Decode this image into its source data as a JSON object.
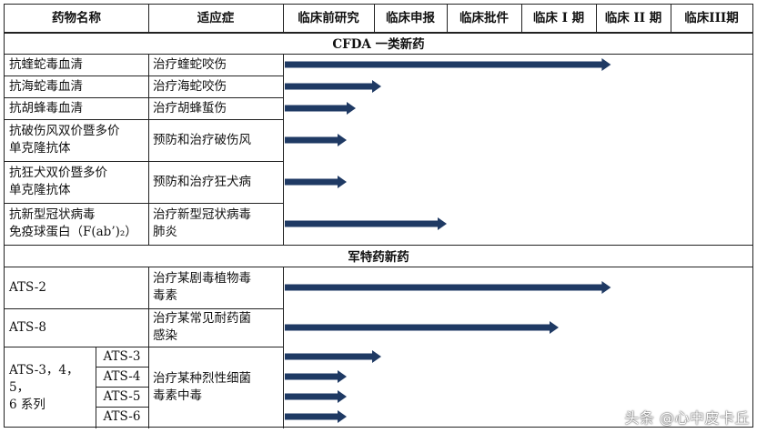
{
  "headers": {
    "drug": "药物名称",
    "indication": "适应症",
    "stages": [
      "临床前研究",
      "临床申报",
      "临床批件",
      "临床 I 期",
      "临床 II 期",
      "临床III期"
    ]
  },
  "sections": {
    "cfda": "CFDA 一类新药",
    "military": "军特药新药"
  },
  "rows": [
    {
      "drug": "抗蝰蛇毒血清",
      "indication": "治疗蝰蛇咬伤",
      "progress_stages": 4.2
    },
    {
      "drug": "抗海蛇毒血清",
      "indication": "治疗海蛇咬伤",
      "progress_stages": 1.1
    },
    {
      "drug": "抗胡蜂毒血清",
      "indication": "治疗胡蜂蜇伤",
      "progress_stages": 0.8
    },
    {
      "drug": "抗破伤风双价暨多价\n单克隆抗体",
      "indication": "预防和治疗破伤风",
      "progress_stages": 0.7
    },
    {
      "drug": "抗狂犬双价暨多价\n单克隆抗体",
      "indication": "预防和治疗狂犬病",
      "progress_stages": 0.7
    },
    {
      "drug": "抗新型冠状病毒\n免疫球蛋白（F(ab’)₂）",
      "indication": "治疗新型冠状病毒\n肺炎",
      "progress_stages": 2.0
    },
    {
      "drug": "ATS-2",
      "indication": "治疗某剧毒植物毒\n毒素",
      "progress_stages": 4.2
    },
    {
      "drug": "ATS-8",
      "indication": "治疗某常见耐药菌\n感染",
      "progress_stages": 3.5
    }
  ],
  "group": {
    "drug": "ATS-3，4，5，\n6 系列",
    "indication": "治疗某种烈性细菌\n毒素中毒",
    "subrows": [
      {
        "name": "ATS-3",
        "progress_stages": 1.1
      },
      {
        "name": "ATS-4",
        "progress_stages": 0.7
      },
      {
        "name": "ATS-5",
        "progress_stages": 0.7
      },
      {
        "name": "ATS-6",
        "progress_stages": 0.7
      }
    ]
  },
  "watermark": "头条 @心中皮卡丘",
  "colors": {
    "arrow": "#1f3a64",
    "border": "#222222"
  }
}
